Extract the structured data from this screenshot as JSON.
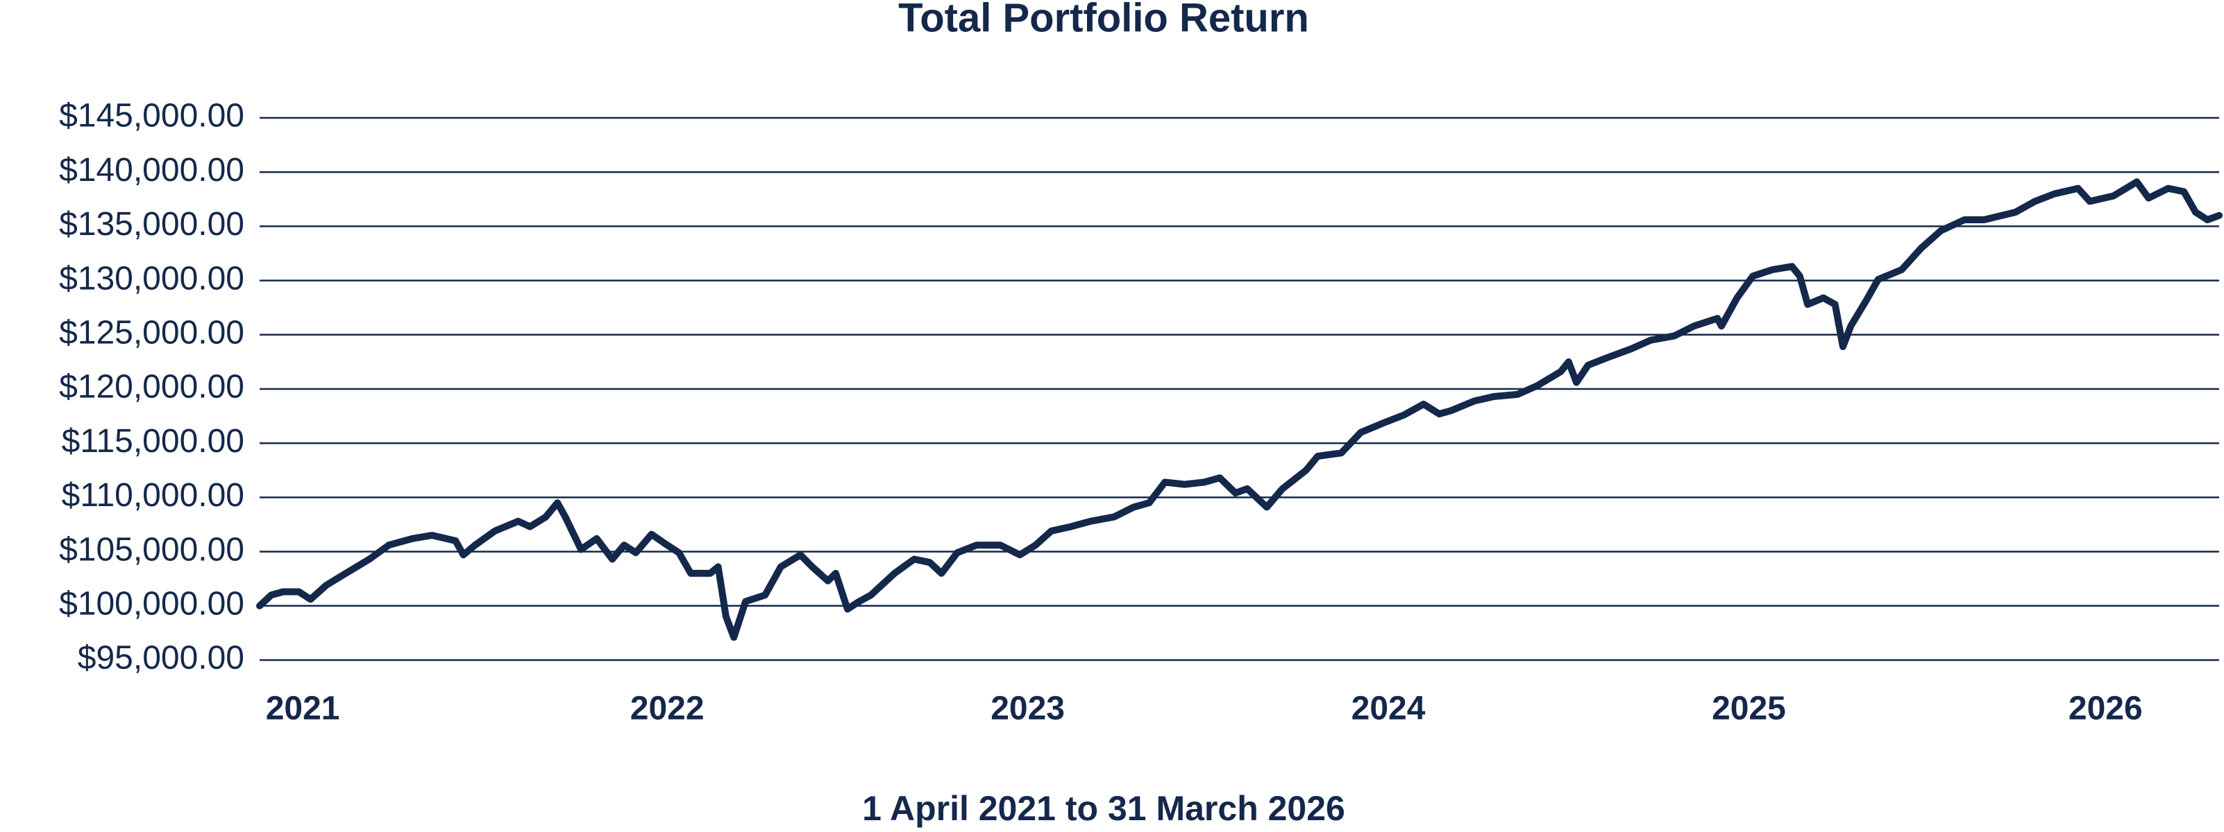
{
  "chart_data": {
    "type": "line",
    "title": "Total Portfolio Return",
    "x_label": "1 April 2021 to 31 March 2026",
    "xlim": [
      2021.25,
      2026.25
    ],
    "xticks": [
      {
        "value": 2021.36,
        "label": "2021"
      },
      {
        "value": 2022.29,
        "label": "2022"
      },
      {
        "value": 2023.21,
        "label": "2023"
      },
      {
        "value": 2024.13,
        "label": "2024"
      },
      {
        "value": 2025.05,
        "label": "2025"
      },
      {
        "value": 2025.96,
        "label": "2026"
      }
    ],
    "ylim": [
      95000,
      145000
    ],
    "yticks": [
      {
        "value": 95000,
        "label": "$95,000.00"
      },
      {
        "value": 100000,
        "label": "$100,000.00"
      },
      {
        "value": 105000,
        "label": "$105,000.00"
      },
      {
        "value": 110000,
        "label": "$110,000.00"
      },
      {
        "value": 115000,
        "label": "$115,000.00"
      },
      {
        "value": 120000,
        "label": "$120,000.00"
      },
      {
        "value": 125000,
        "label": "$125,000.00"
      },
      {
        "value": 130000,
        "label": "$130,000.00"
      },
      {
        "value": 135000,
        "label": "$135,000.00"
      },
      {
        "value": 140000,
        "label": "$140,000.00"
      },
      {
        "value": 145000,
        "label": "$145,000.00"
      }
    ],
    "grid": true,
    "color": "#14284b",
    "x": [
      2021.25,
      2021.28,
      2021.31,
      2021.35,
      2021.38,
      2021.42,
      2021.47,
      2021.53,
      2021.58,
      2021.64,
      2021.69,
      2021.75,
      2021.77,
      2021.8,
      2021.85,
      2021.91,
      2021.94,
      2021.98,
      2022.01,
      2022.03,
      2022.07,
      2022.11,
      2022.15,
      2022.18,
      2022.21,
      2022.25,
      2022.29,
      2022.32,
      2022.35,
      2022.4,
      2022.42,
      2022.44,
      2022.46,
      2022.49,
      2022.54,
      2022.58,
      2022.63,
      2022.66,
      2022.7,
      2022.72,
      2022.75,
      2022.78,
      2022.81,
      2022.87,
      2022.92,
      2022.96,
      2022.99,
      2023.03,
      2023.08,
      2023.14,
      2023.19,
      2023.23,
      2023.27,
      2023.32,
      2023.37,
      2023.43,
      2023.48,
      2023.52,
      2023.56,
      2023.61,
      2023.66,
      2023.7,
      2023.74,
      2023.77,
      2023.82,
      2023.86,
      2023.92,
      2023.95,
      2024.01,
      2024.06,
      2024.12,
      2024.17,
      2024.22,
      2024.26,
      2024.29,
      2024.35,
      2024.4,
      2024.46,
      2024.51,
      2024.57,
      2024.59,
      2024.61,
      2024.64,
      2024.69,
      2024.75,
      2024.8,
      2024.86,
      2024.91,
      2024.97,
      2024.98,
      2025.02,
      2025.06,
      2025.11,
      2025.16,
      2025.18,
      2025.2,
      2025.24,
      2025.27,
      2025.29,
      2025.31,
      2025.35,
      2025.38,
      2025.44,
      2025.49,
      2025.54,
      2025.6,
      2025.65,
      2025.73,
      2025.78,
      2025.83,
      2025.89,
      2025.92,
      2025.98,
      2026.04,
      2026.07,
      2026.12,
      2026.16,
      2026.19,
      2026.22,
      2026.25
    ],
    "values": [
      100000,
      101000,
      101300,
      101300,
      100600,
      101900,
      103000,
      104300,
      105600,
      106200,
      106500,
      106000,
      104700,
      105600,
      106900,
      107800,
      107300,
      108200,
      109500,
      108200,
      105200,
      106200,
      104300,
      105600,
      104900,
      106600,
      105600,
      104900,
      103000,
      103000,
      103600,
      99000,
      97100,
      100400,
      101000,
      103600,
      104700,
      103600,
      102300,
      103000,
      99700,
      100400,
      101000,
      103000,
      104300,
      104000,
      103000,
      104900,
      105600,
      105600,
      104700,
      105600,
      106900,
      107300,
      107800,
      108200,
      109100,
      109500,
      111400,
      111200,
      111400,
      111800,
      110400,
      110800,
      109100,
      110800,
      112500,
      113800,
      114100,
      116000,
      116900,
      117600,
      118600,
      117700,
      118000,
      118900,
      119300,
      119500,
      120300,
      121600,
      122500,
      120600,
      122200,
      122900,
      123700,
      124500,
      124900,
      125800,
      126500,
      125800,
      128400,
      130400,
      131000,
      131300,
      130400,
      127800,
      128400,
      127800,
      123900,
      125800,
      128200,
      130100,
      131000,
      133000,
      134600,
      135600,
      135600,
      136300,
      137300,
      138000,
      138500,
      137300,
      137800,
      139100,
      137600,
      138500,
      138200,
      136300,
      135600,
      136000
    ]
  }
}
